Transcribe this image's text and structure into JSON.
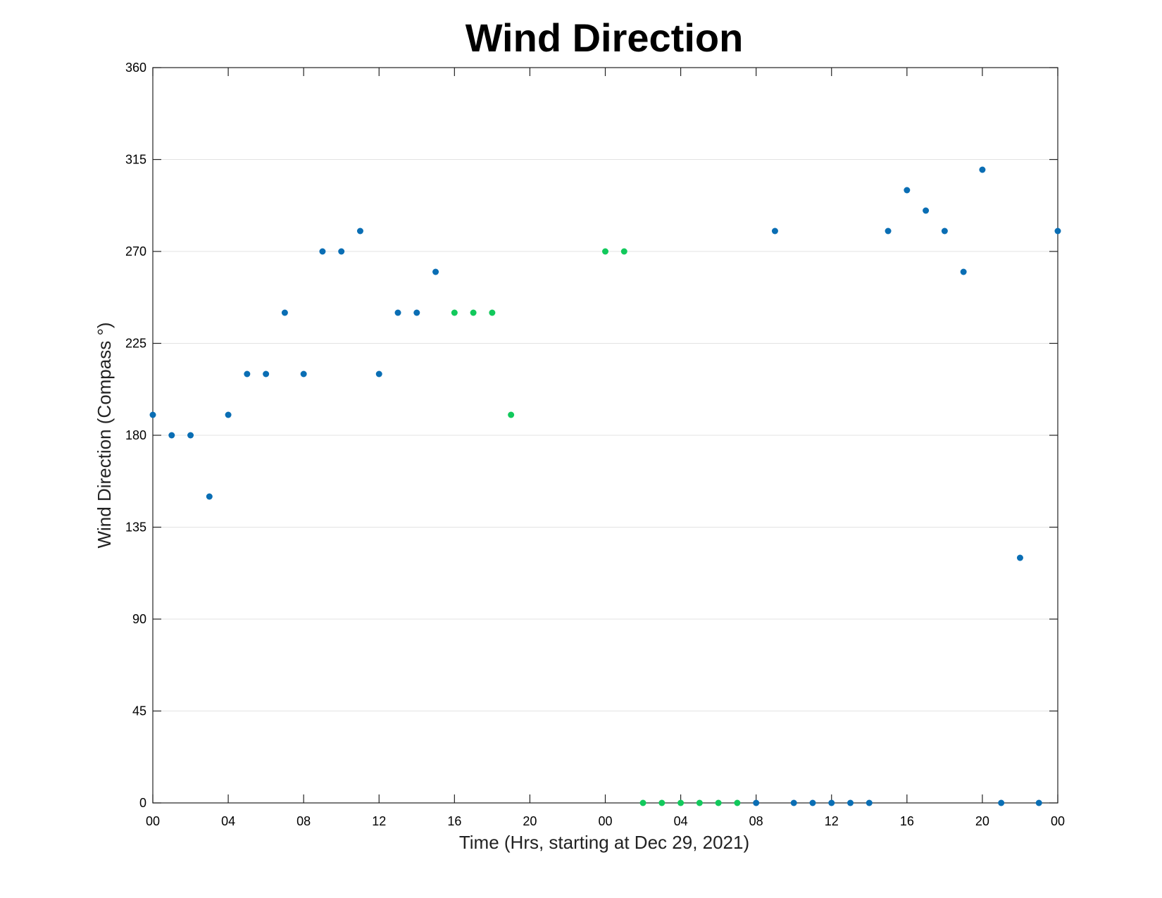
{
  "chart_data": {
    "type": "scatter",
    "title": "Wind Direction",
    "xlabel": "Time (Hrs, starting at Dec 29, 2021)",
    "ylabel": "Wind Direction (Compass °)",
    "xlim": [
      0,
      48
    ],
    "ylim": [
      0,
      360
    ],
    "x_ticks": [
      {
        "x": 0,
        "label": "00"
      },
      {
        "x": 4,
        "label": "04"
      },
      {
        "x": 8,
        "label": "08"
      },
      {
        "x": 12,
        "label": "12"
      },
      {
        "x": 16,
        "label": "16"
      },
      {
        "x": 20,
        "label": "20"
      },
      {
        "x": 24,
        "label": "00"
      },
      {
        "x": 28,
        "label": "04"
      },
      {
        "x": 32,
        "label": "08"
      },
      {
        "x": 36,
        "label": "12"
      },
      {
        "x": 40,
        "label": "16"
      },
      {
        "x": 44,
        "label": "20"
      },
      {
        "x": 48,
        "label": "00"
      }
    ],
    "y_ticks": [
      0,
      45,
      90,
      135,
      180,
      225,
      270,
      315,
      360
    ],
    "grid": true,
    "series": [
      {
        "color": "#0a6eb4",
        "points": [
          [
            0,
            190
          ],
          [
            1,
            180
          ],
          [
            2,
            180
          ],
          [
            3,
            150
          ],
          [
            4,
            190
          ],
          [
            5,
            210
          ],
          [
            6,
            210
          ],
          [
            7,
            240
          ],
          [
            8,
            210
          ],
          [
            9,
            270
          ],
          [
            10,
            270
          ],
          [
            11,
            280
          ],
          [
            12,
            210
          ],
          [
            13,
            240
          ],
          [
            14,
            240
          ],
          [
            15,
            260
          ],
          [
            32,
            0
          ],
          [
            33,
            280
          ],
          [
            34,
            0
          ],
          [
            35,
            0
          ],
          [
            36,
            0
          ],
          [
            37,
            0
          ],
          [
            38,
            0
          ],
          [
            39,
            280
          ],
          [
            40,
            300
          ],
          [
            41,
            290
          ],
          [
            42,
            280
          ],
          [
            43,
            260
          ],
          [
            44,
            310
          ],
          [
            45,
            0
          ],
          [
            46,
            120
          ],
          [
            47,
            0
          ],
          [
            48,
            280
          ]
        ]
      },
      {
        "color": "#12c95c",
        "points": [
          [
            16,
            240
          ],
          [
            17,
            240
          ],
          [
            18,
            240
          ],
          [
            19,
            190
          ],
          [
            24,
            270
          ],
          [
            25,
            270
          ],
          [
            26,
            0
          ],
          [
            27,
            0
          ],
          [
            28,
            0
          ],
          [
            29,
            0
          ],
          [
            30,
            0
          ],
          [
            31,
            0
          ]
        ]
      }
    ]
  }
}
